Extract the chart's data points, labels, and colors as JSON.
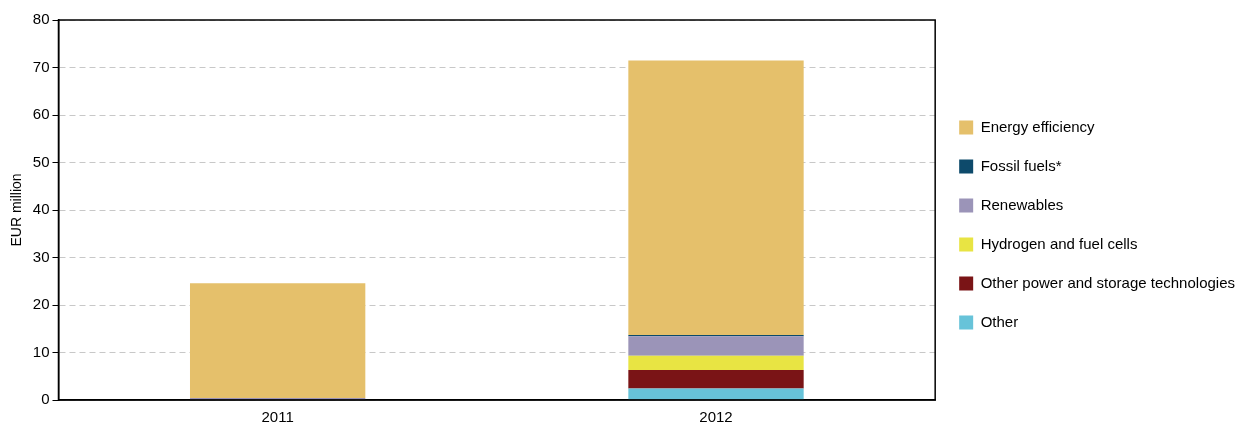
{
  "chart_data": {
    "type": "bar",
    "stacked": true,
    "ylabel": "EUR million",
    "categories": [
      "2011",
      "2012"
    ],
    "series": [
      {
        "name": "Other",
        "color": "#67c3d9",
        "values": [
          0,
          2.4
        ]
      },
      {
        "name": "Other power and storage technologies",
        "color": "#7a1416",
        "values": [
          0,
          3.9
        ]
      },
      {
        "name": "Hydrogen and fuel cells",
        "color": "#e8e443",
        "values": [
          0,
          3.0
        ]
      },
      {
        "name": "Renewables",
        "color": "#9b94b8",
        "values": [
          0.4,
          4.1
        ]
      },
      {
        "name": "Fossil fuels*",
        "color": "#0d4a6b",
        "values": [
          0,
          0.3
        ]
      },
      {
        "name": "Energy efficiency",
        "color": "#e5c06b",
        "values": [
          24.2,
          57.8
        ]
      }
    ],
    "ylim": [
      0,
      80
    ],
    "yticks": [
      0,
      10,
      20,
      30,
      40,
      50,
      60,
      70,
      80
    ],
    "grid": "y",
    "legend": "right"
  }
}
